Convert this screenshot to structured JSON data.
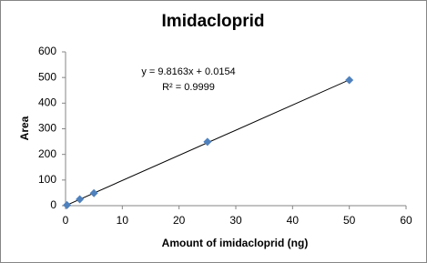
{
  "chart_data": {
    "type": "scatter",
    "title": "Imidacloprid",
    "x_label": "Amount of  imidacloprid  (ng)",
    "y_label": "Area",
    "series": [
      {
        "name": "Area",
        "color": "#4f81bd",
        "x": [
          0.25,
          2.5,
          5,
          25,
          50
        ],
        "values": [
          2,
          25,
          49,
          249,
          490
        ]
      }
    ],
    "trendline": {
      "equation": "y = 9.8163x + 0.0154",
      "r_squared": "R² = 0.9999",
      "slope": 9.8163,
      "intercept": 0.0154,
      "color": "#000000"
    },
    "xlim": [
      0,
      60
    ],
    "xticks": [
      0,
      10,
      20,
      30,
      40,
      50,
      60
    ],
    "ylim": [
      0,
      600
    ],
    "yticks": [
      0,
      100,
      200,
      300,
      400,
      500,
      600
    ],
    "grid": false
  }
}
